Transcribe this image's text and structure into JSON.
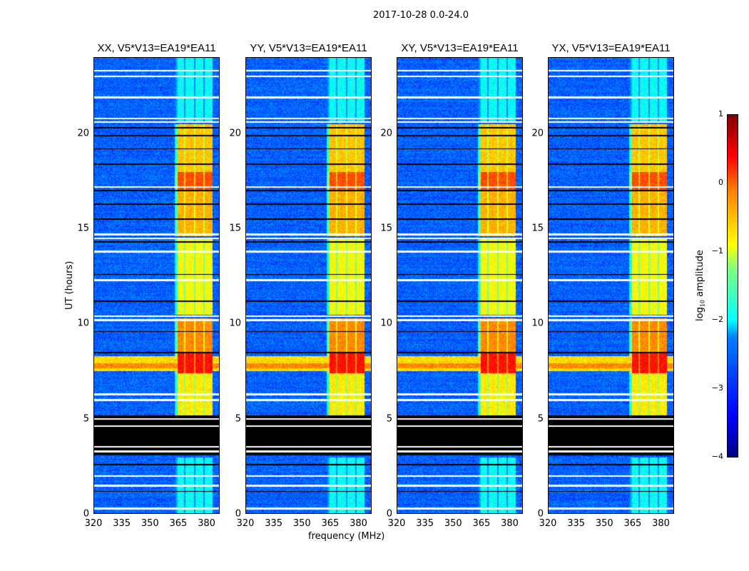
{
  "suptitle": "2017-10-28 0.0-24.0",
  "chart_data": {
    "type": "heatmap",
    "title": "2017-10-28 0.0-24.0",
    "panels": [
      {
        "title": "XX, V5*V13=EA19*EA11"
      },
      {
        "title": "YY, V5*V13=EA19*EA11"
      },
      {
        "title": "XY, V5*V13=EA19*EA11"
      },
      {
        "title": "YX, V5*V13=EA19*EA11"
      }
    ],
    "xlabel": "frequency (MHz)",
    "ylabel": "UT (hours)",
    "xlim": [
      320,
      387
    ],
    "ylim": [
      0,
      24
    ],
    "xticks": [
      "320",
      "335",
      "350",
      "365",
      "380"
    ],
    "xtick_values": [
      320,
      335,
      350,
      365,
      380
    ],
    "yticks": [
      "0",
      "5",
      "10",
      "15",
      "20"
    ],
    "ytick_values": [
      0,
      5,
      10,
      15,
      20
    ],
    "colorbar": {
      "label_prefix": "log",
      "label_sub": "10",
      "label_suffix": " amplitude",
      "range": [
        -4,
        1
      ],
      "ticks": [
        "1",
        "0",
        "−1",
        "−2",
        "−3",
        "−4"
      ],
      "tick_values": [
        1,
        0,
        -1,
        -2,
        -3,
        -4
      ],
      "colormap": "jet"
    },
    "band_mhz": [
      363,
      383
    ],
    "band_levels": [
      {
        "t": [
          0,
          3.0
        ],
        "level": -2.1
      },
      {
        "t": [
          5.2,
          7.4
        ],
        "level": -0.8
      },
      {
        "t": [
          7.4,
          8.5
        ],
        "level": 0.3
      },
      {
        "t": [
          8.5,
          10.3
        ],
        "level": -0.3
      },
      {
        "t": [
          10.5,
          14.5
        ],
        "level": -0.9
      },
      {
        "t": [
          14.6,
          17.0
        ],
        "level": -0.5
      },
      {
        "t": [
          17.0,
          18.0
        ],
        "level": 0.0
      },
      {
        "t": [
          18.0,
          20.5
        ],
        "level": -0.6
      },
      {
        "t": [
          20.6,
          24
        ],
        "level": -2.1
      }
    ],
    "background_level": -2.9,
    "rfi_band": {
      "t": [
        7.5,
        8.3
      ],
      "level": -0.7
    },
    "blank_rows_hours": [
      0.3,
      1.5,
      2.0,
      3.3,
      5.0,
      6.0,
      6.3,
      10.2,
      10.4,
      12.3,
      13.8,
      14.5,
      14.7,
      17.2,
      20.6,
      20.8,
      21.9,
      23.0,
      23.3
    ],
    "black_band_hours": [
      3.1,
      5.2
    ],
    "black_rows_hours": [
      1.2,
      2.6,
      8.5,
      9.6,
      11.2,
      12.6,
      14.3,
      15.5,
      16.3,
      17.0,
      18.4,
      19.2,
      19.9,
      20.3
    ]
  }
}
